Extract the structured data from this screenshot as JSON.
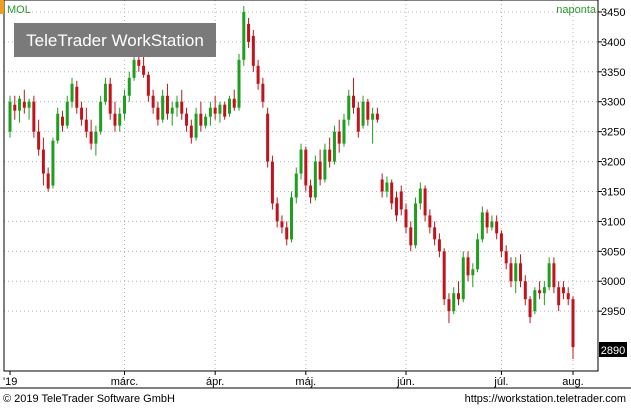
{
  "header": {
    "symbol": "MOL",
    "period": "naponta"
  },
  "watermark": "TeleTrader WorkStation",
  "last_price_label": "2890",
  "footer": {
    "copyright": "© 2019 TeleTrader Software GmbH",
    "url": "https://workstation.teletrader.com"
  },
  "colors": {
    "up": "#1f9e1f",
    "down": "#c0141c",
    "grid": "#b4b4b4",
    "header_text": "#2c9a2c",
    "marker_orange": "#f0a020"
  },
  "chart_data": {
    "type": "candlestick",
    "title": "",
    "y_axis": {
      "min": 2850,
      "max": 3470,
      "ticks": [
        2950,
        3000,
        3050,
        3100,
        3150,
        3200,
        3250,
        3300,
        3350,
        3400,
        3450
      ],
      "position": "right"
    },
    "x_axis": {
      "labels": [
        "'19",
        "márc.",
        "ápr.",
        "máj.",
        "jún.",
        "júl.",
        "aug."
      ]
    },
    "last_value": 2890,
    "candles": [
      {
        "o": 3250,
        "h": 3310,
        "l": 3240,
        "c": 3300
      },
      {
        "o": 3295,
        "h": 3310,
        "l": 3270,
        "c": 3285
      },
      {
        "o": 3285,
        "h": 3310,
        "l": 3265,
        "c": 3305
      },
      {
        "o": 3300,
        "h": 3320,
        "l": 3280,
        "c": 3290
      },
      {
        "o": 3290,
        "h": 3305,
        "l": 3270,
        "c": 3300
      },
      {
        "o": 3300,
        "h": 3310,
        "l": 3240,
        "c": 3250
      },
      {
        "o": 3250,
        "h": 3270,
        "l": 3210,
        "c": 3220
      },
      {
        "o": 3220,
        "h": 3240,
        "l": 3160,
        "c": 3180
      },
      {
        "o": 3180,
        "h": 3190,
        "l": 3150,
        "c": 3155
      },
      {
        "o": 3160,
        "h": 3240,
        "l": 3155,
        "c": 3235
      },
      {
        "o": 3235,
        "h": 3290,
        "l": 3230,
        "c": 3280
      },
      {
        "o": 3275,
        "h": 3285,
        "l": 3250,
        "c": 3260
      },
      {
        "o": 3260,
        "h": 3310,
        "l": 3255,
        "c": 3300
      },
      {
        "o": 3300,
        "h": 3340,
        "l": 3290,
        "c": 3330
      },
      {
        "o": 3325,
        "h": 3335,
        "l": 3280,
        "c": 3290
      },
      {
        "o": 3290,
        "h": 3300,
        "l": 3260,
        "c": 3270
      },
      {
        "o": 3270,
        "h": 3290,
        "l": 3240,
        "c": 3250
      },
      {
        "o": 3250,
        "h": 3270,
        "l": 3220,
        "c": 3230
      },
      {
        "o": 3230,
        "h": 3260,
        "l": 3210,
        "c": 3250
      },
      {
        "o": 3250,
        "h": 3310,
        "l": 3245,
        "c": 3300
      },
      {
        "o": 3300,
        "h": 3340,
        "l": 3295,
        "c": 3330
      },
      {
        "o": 3330,
        "h": 3340,
        "l": 3270,
        "c": 3280
      },
      {
        "o": 3280,
        "h": 3300,
        "l": 3250,
        "c": 3260
      },
      {
        "o": 3260,
        "h": 3290,
        "l": 3250,
        "c": 3280
      },
      {
        "o": 3280,
        "h": 3320,
        "l": 3270,
        "c": 3310
      },
      {
        "o": 3310,
        "h": 3350,
        "l": 3300,
        "c": 3340
      },
      {
        "o": 3340,
        "h": 3380,
        "l": 3335,
        "c": 3370
      },
      {
        "o": 3370,
        "h": 3385,
        "l": 3350,
        "c": 3360
      },
      {
        "o": 3360,
        "h": 3380,
        "l": 3340,
        "c": 3345
      },
      {
        "o": 3345,
        "h": 3350,
        "l": 3300,
        "c": 3310
      },
      {
        "o": 3310,
        "h": 3320,
        "l": 3280,
        "c": 3290
      },
      {
        "o": 3290,
        "h": 3300,
        "l": 3260,
        "c": 3270
      },
      {
        "o": 3270,
        "h": 3320,
        "l": 3265,
        "c": 3310
      },
      {
        "o": 3310,
        "h": 3330,
        "l": 3270,
        "c": 3280
      },
      {
        "o": 3280,
        "h": 3300,
        "l": 3260,
        "c": 3290
      },
      {
        "o": 3290,
        "h": 3310,
        "l": 3275,
        "c": 3300
      },
      {
        "o": 3300,
        "h": 3320,
        "l": 3270,
        "c": 3280
      },
      {
        "o": 3280,
        "h": 3290,
        "l": 3250,
        "c": 3260
      },
      {
        "o": 3260,
        "h": 3270,
        "l": 3230,
        "c": 3240
      },
      {
        "o": 3240,
        "h": 3290,
        "l": 3235,
        "c": 3280
      },
      {
        "o": 3280,
        "h": 3300,
        "l": 3250,
        "c": 3260
      },
      {
        "o": 3260,
        "h": 3280,
        "l": 3255,
        "c": 3275
      },
      {
        "o": 3275,
        "h": 3300,
        "l": 3260,
        "c": 3290
      },
      {
        "o": 3290,
        "h": 3310,
        "l": 3270,
        "c": 3280
      },
      {
        "o": 3280,
        "h": 3300,
        "l": 3265,
        "c": 3295
      },
      {
        "o": 3295,
        "h": 3300,
        "l": 3270,
        "c": 3275
      },
      {
        "o": 3280,
        "h": 3310,
        "l": 3275,
        "c": 3305
      },
      {
        "o": 3305,
        "h": 3320,
        "l": 3285,
        "c": 3290
      },
      {
        "o": 3290,
        "h": 3380,
        "l": 3285,
        "c": 3370
      },
      {
        "o": 3370,
        "h": 3460,
        "l": 3360,
        "c": 3450
      },
      {
        "o": 3430,
        "h": 3440,
        "l": 3390,
        "c": 3400
      },
      {
        "o": 3410,
        "h": 3420,
        "l": 3350,
        "c": 3360
      },
      {
        "o": 3360,
        "h": 3370,
        "l": 3320,
        "c": 3330
      },
      {
        "o": 3330,
        "h": 3340,
        "l": 3290,
        "c": 3300
      },
      {
        "o": 3280,
        "h": 3290,
        "l": 3190,
        "c": 3200
      },
      {
        "o": 3200,
        "h": 3210,
        "l": 3120,
        "c": 3130
      },
      {
        "o": 3130,
        "h": 3140,
        "l": 3090,
        "c": 3100
      },
      {
        "o": 3100,
        "h": 3110,
        "l": 3080,
        "c": 3090
      },
      {
        "o": 3090,
        "h": 3100,
        "l": 3060,
        "c": 3070
      },
      {
        "o": 3070,
        "h": 3150,
        "l": 3065,
        "c": 3140
      },
      {
        "o": 3140,
        "h": 3190,
        "l": 3130,
        "c": 3180
      },
      {
        "o": 3180,
        "h": 3230,
        "l": 3170,
        "c": 3220
      },
      {
        "o": 3220,
        "h": 3225,
        "l": 3150,
        "c": 3160
      },
      {
        "o": 3160,
        "h": 3170,
        "l": 3130,
        "c": 3140
      },
      {
        "o": 3140,
        "h": 3210,
        "l": 3135,
        "c": 3200
      },
      {
        "o": 3200,
        "h": 3220,
        "l": 3160,
        "c": 3170
      },
      {
        "o": 3170,
        "h": 3230,
        "l": 3165,
        "c": 3220
      },
      {
        "o": 3220,
        "h": 3240,
        "l": 3190,
        "c": 3200
      },
      {
        "o": 3200,
        "h": 3260,
        "l": 3195,
        "c": 3250
      },
      {
        "o": 3250,
        "h": 3270,
        "l": 3215,
        "c": 3230
      },
      {
        "o": 3230,
        "h": 3280,
        "l": 3225,
        "c": 3270
      },
      {
        "o": 3270,
        "h": 3320,
        "l": 3260,
        "c": 3310
      },
      {
        "o": 3310,
        "h": 3340,
        "l": 3280,
        "c": 3290
      },
      {
        "o": 3290,
        "h": 3300,
        "l": 3240,
        "c": 3250
      },
      {
        "o": 3260,
        "h": 3310,
        "l": 3255,
        "c": 3300
      },
      {
        "o": 3300,
        "h": 3305,
        "l": 3260,
        "c": 3270
      },
      {
        "o": 3270,
        "h": 3290,
        "l": 3230,
        "c": 3280
      },
      {
        "o": 3280,
        "h": 3290,
        "l": 3265,
        "c": 3270
      },
      {
        "o": 3170,
        "h": 3180,
        "l": 3140,
        "c": 3150
      },
      {
        "o": 3150,
        "h": 3175,
        "l": 3140,
        "c": 3165
      },
      {
        "o": 3165,
        "h": 3170,
        "l": 3120,
        "c": 3130
      },
      {
        "o": 3140,
        "h": 3150,
        "l": 3100,
        "c": 3110
      },
      {
        "o": 3150,
        "h": 3160,
        "l": 3110,
        "c": 3120
      },
      {
        "o": 3120,
        "h": 3130,
        "l": 3080,
        "c": 3090
      },
      {
        "o": 3090,
        "h": 3100,
        "l": 3050,
        "c": 3060
      },
      {
        "o": 3060,
        "h": 3140,
        "l": 3055,
        "c": 3130
      },
      {
        "o": 3130,
        "h": 3165,
        "l": 3120,
        "c": 3155
      },
      {
        "o": 3155,
        "h": 3160,
        "l": 3100,
        "c": 3110
      },
      {
        "o": 3110,
        "h": 3120,
        "l": 3080,
        "c": 3090
      },
      {
        "o": 3090,
        "h": 3100,
        "l": 3060,
        "c": 3070
      },
      {
        "o": 3070,
        "h": 3080,
        "l": 3040,
        "c": 3050
      },
      {
        "o": 3050,
        "h": 3055,
        "l": 2960,
        "c": 2970
      },
      {
        "o": 2970,
        "h": 2980,
        "l": 2930,
        "c": 2950
      },
      {
        "o": 2950,
        "h": 2990,
        "l": 2945,
        "c": 2980
      },
      {
        "o": 2980,
        "h": 3000,
        "l": 2960,
        "c": 2970
      },
      {
        "o": 2970,
        "h": 3050,
        "l": 2965,
        "c": 3040
      },
      {
        "o": 3040,
        "h": 3050,
        "l": 3000,
        "c": 3010
      },
      {
        "o": 3010,
        "h": 3030,
        "l": 2990,
        "c": 3020
      },
      {
        "o": 3020,
        "h": 3080,
        "l": 3015,
        "c": 3070
      },
      {
        "o": 3070,
        "h": 3125,
        "l": 3065,
        "c": 3115
      },
      {
        "o": 3115,
        "h": 3120,
        "l": 3080,
        "c": 3090
      },
      {
        "o": 3090,
        "h": 3110,
        "l": 3085,
        "c": 3100
      },
      {
        "o": 3100,
        "h": 3110,
        "l": 3070,
        "c": 3080
      },
      {
        "o": 3080,
        "h": 3085,
        "l": 3040,
        "c": 3050
      },
      {
        "o": 3050,
        "h": 3060,
        "l": 3020,
        "c": 3030
      },
      {
        "o": 3030,
        "h": 3040,
        "l": 2990,
        "c": 3000
      },
      {
        "o": 3000,
        "h": 3040,
        "l": 2980,
        "c": 3030
      },
      {
        "o": 3030,
        "h": 3045,
        "l": 2990,
        "c": 3000
      },
      {
        "o": 3000,
        "h": 3010,
        "l": 2960,
        "c": 2970
      },
      {
        "o": 2970,
        "h": 2975,
        "l": 2930,
        "c": 2940
      },
      {
        "o": 2950,
        "h": 2990,
        "l": 2945,
        "c": 2985
      },
      {
        "o": 2985,
        "h": 3000,
        "l": 2970,
        "c": 2980
      },
      {
        "o": 2980,
        "h": 3000,
        "l": 2960,
        "c": 2990
      },
      {
        "o": 2990,
        "h": 3040,
        "l": 2985,
        "c": 3030
      },
      {
        "o": 3030,
        "h": 3040,
        "l": 2980,
        "c": 2990
      },
      {
        "o": 2990,
        "h": 3000,
        "l": 2950,
        "c": 2960
      },
      {
        "o": 2990,
        "h": 3000,
        "l": 2970,
        "c": 2980
      },
      {
        "o": 2980,
        "h": 2990,
        "l": 2960,
        "c": 2970
      },
      {
        "o": 2970,
        "h": 2975,
        "l": 2870,
        "c": 2890
      }
    ]
  }
}
